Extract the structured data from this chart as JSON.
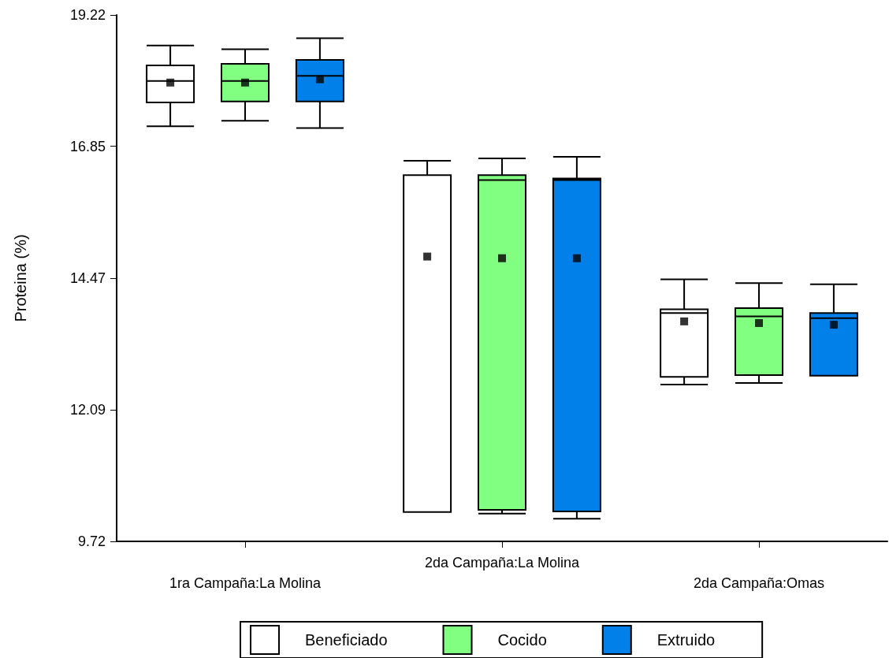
{
  "chart_data": {
    "type": "box",
    "ylabel": "Proteina (%)",
    "categories": [
      "1ra Campaña:La Molina",
      "2da Campaña:La Molina",
      "2da Campaña:Omas"
    ],
    "ylim": [
      9.72,
      19.22
    ],
    "yticks": [
      9.72,
      12.09,
      14.47,
      16.85,
      19.22
    ],
    "grid": false,
    "legend": "bottom",
    "marker": "square",
    "series": [
      {
        "name": "Beneficiado",
        "color": "#ffffff",
        "boxes": [
          {
            "low": 17.21,
            "q1": 17.64,
            "median": 18.03,
            "q3": 18.31,
            "high": 18.67,
            "mean": 18.0
          },
          {
            "low": 10.25,
            "q1": 10.25,
            "median": 10.25,
            "q3": 16.33,
            "high": 16.59,
            "mean": 14.86
          },
          {
            "low": 12.55,
            "q1": 12.69,
            "median": 13.84,
            "q3": 13.91,
            "high": 14.45,
            "mean": 13.69
          }
        ]
      },
      {
        "name": "Cocido",
        "color": "#80ff80",
        "boxes": [
          {
            "low": 17.31,
            "q1": 17.66,
            "median": 18.03,
            "q3": 18.34,
            "high": 18.6,
            "mean": 18.0
          },
          {
            "low": 10.22,
            "q1": 10.29,
            "median": 16.24,
            "q3": 16.33,
            "high": 16.63,
            "mean": 14.83
          },
          {
            "low": 12.58,
            "q1": 12.72,
            "median": 13.78,
            "q3": 13.93,
            "high": 14.38,
            "mean": 13.66
          }
        ]
      },
      {
        "name": "Extruido",
        "color": "#0080e8",
        "boxes": [
          {
            "low": 17.18,
            "q1": 17.66,
            "median": 18.12,
            "q3": 18.41,
            "high": 18.8,
            "mean": 18.06
          },
          {
            "low": 10.13,
            "q1": 10.26,
            "median": 16.24,
            "q3": 16.27,
            "high": 16.66,
            "mean": 14.83
          },
          {
            "low": 12.71,
            "q1": 12.71,
            "median": 13.75,
            "q3": 13.84,
            "high": 14.36,
            "mean": 13.63
          }
        ]
      }
    ]
  }
}
